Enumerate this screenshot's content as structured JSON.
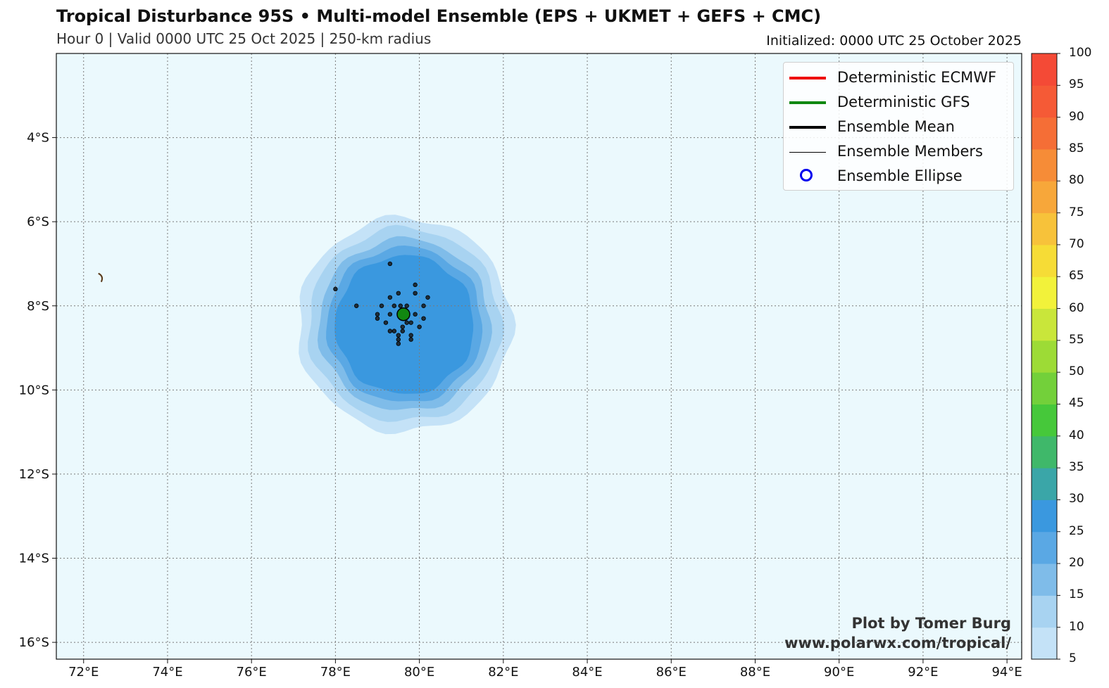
{
  "title": "Tropical Disturbance 95S • Multi-model Ensemble (EPS + UKMET + GEFS + CMC)",
  "subtitle": "Hour 0 | Valid 0000 UTC 25 Oct 2025 | 250-km radius",
  "initialized": "Initialized: 0000 UTC 25 October 2025",
  "credit": {
    "line1": "Plot by Tomer Burg",
    "line2": "www.polarwx.com/tropical/"
  },
  "legend": [
    {
      "label": "Deterministic ECMWF",
      "color": "#ee0000",
      "style": "thick-line"
    },
    {
      "label": "Deterministic GFS",
      "color": "#118811",
      "style": "thick-line"
    },
    {
      "label": "Ensemble Mean",
      "color": "#000000",
      "style": "thick-line"
    },
    {
      "label": "Ensemble Members",
      "color": "#000000",
      "style": "thin-line"
    },
    {
      "label": "Ensemble Ellipse",
      "color": "#0000ee",
      "style": "circle"
    }
  ],
  "map": {
    "lon_range": [
      71.35,
      94.35
    ],
    "lat_range": [
      -16.4,
      -2.0
    ],
    "lon_ticks": [
      72,
      74,
      76,
      78,
      80,
      82,
      84,
      86,
      88,
      90,
      92,
      94
    ],
    "lon_tick_labels": [
      "72°E",
      "74°E",
      "76°E",
      "78°E",
      "80°E",
      "82°E",
      "84°E",
      "86°E",
      "88°E",
      "90°E",
      "92°E",
      "94°E"
    ],
    "lat_ticks": [
      -4,
      -6,
      -8,
      -10,
      -12,
      -14,
      -16
    ],
    "lat_tick_labels": [
      "4°S",
      "6°S",
      "8°S",
      "10°S",
      "12°S",
      "14°S",
      "16°S"
    ],
    "ocean_color": "#ebf9fd",
    "gridlines": true,
    "island": {
      "lon": 72.42,
      "lat": -7.33,
      "color": "#5a3a1a"
    }
  },
  "probability_field": {
    "center": {
      "lon": 79.65,
      "lat": -8.45
    },
    "contours": [
      {
        "level": 5,
        "radius_deg": 2.55,
        "color": "#c4e2f7"
      },
      {
        "level": 10,
        "radius_deg": 2.3,
        "color": "#a8d3f1"
      },
      {
        "level": 15,
        "radius_deg": 2.05,
        "color": "#7fbce9"
      },
      {
        "level": 20,
        "radius_deg": 1.85,
        "color": "#5aa8e4"
      },
      {
        "level": 25,
        "radius_deg": 1.65,
        "color": "#3a98df"
      }
    ]
  },
  "deterministic_gfs_position": {
    "lon": 79.62,
    "lat": -8.2,
    "color": "#118811"
  },
  "ensemble_members": [
    {
      "lon": 79.3,
      "lat": -7.0
    },
    {
      "lon": 79.9,
      "lat": -7.5
    },
    {
      "lon": 79.5,
      "lat": -7.7
    },
    {
      "lon": 79.9,
      "lat": -7.7
    },
    {
      "lon": 80.2,
      "lat": -7.8
    },
    {
      "lon": 79.3,
      "lat": -7.8
    },
    {
      "lon": 78.0,
      "lat": -7.6
    },
    {
      "lon": 78.5,
      "lat": -8.0
    },
    {
      "lon": 79.1,
      "lat": -8.0
    },
    {
      "lon": 79.4,
      "lat": -8.0
    },
    {
      "lon": 79.55,
      "lat": -8.0
    },
    {
      "lon": 79.7,
      "lat": -8.0
    },
    {
      "lon": 80.1,
      "lat": -8.0
    },
    {
      "lon": 79.0,
      "lat": -8.2
    },
    {
      "lon": 79.3,
      "lat": -8.2
    },
    {
      "lon": 79.9,
      "lat": -8.2
    },
    {
      "lon": 79.0,
      "lat": -8.3
    },
    {
      "lon": 80.1,
      "lat": -8.3
    },
    {
      "lon": 79.2,
      "lat": -8.4
    },
    {
      "lon": 79.7,
      "lat": -8.4
    },
    {
      "lon": 79.8,
      "lat": -8.4
    },
    {
      "lon": 80.0,
      "lat": -8.5
    },
    {
      "lon": 79.6,
      "lat": -8.5
    },
    {
      "lon": 79.3,
      "lat": -8.6
    },
    {
      "lon": 79.4,
      "lat": -8.6
    },
    {
      "lon": 79.6,
      "lat": -8.6
    },
    {
      "lon": 79.5,
      "lat": -8.7
    },
    {
      "lon": 79.8,
      "lat": -8.7
    },
    {
      "lon": 79.5,
      "lat": -8.8
    },
    {
      "lon": 79.8,
      "lat": -8.8
    },
    {
      "lon": 79.5,
      "lat": -8.9
    }
  ],
  "colorbar": {
    "levels": [
      5,
      10,
      15,
      20,
      25,
      30,
      35,
      40,
      45,
      50,
      55,
      60,
      65,
      70,
      75,
      80,
      85,
      90,
      95,
      100
    ],
    "colors": [
      "#c4e2f7",
      "#a8d3f1",
      "#7fbce9",
      "#5aa8e4",
      "#3a98df",
      "#3aa6a8",
      "#3fb86a",
      "#46c83a",
      "#73d03a",
      "#9ddb36",
      "#c9e63a",
      "#f2f23a",
      "#f6dc36",
      "#f7c23a",
      "#f7a73a",
      "#f68c37",
      "#f56e36",
      "#f55a36",
      "#f44a36"
    ]
  }
}
